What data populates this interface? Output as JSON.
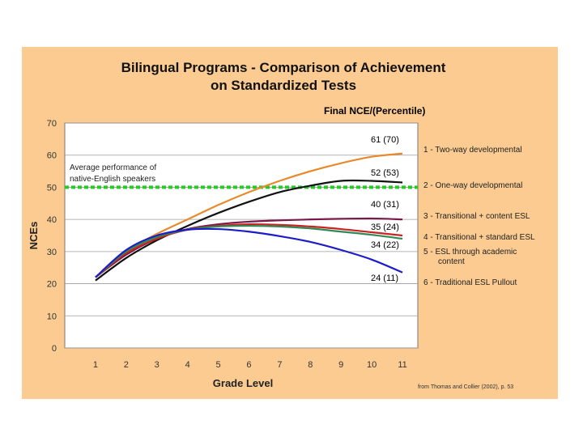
{
  "chart_data": {
    "type": "line",
    "title": "Bilingual Programs - Comparison of Achievement",
    "title_line2": "on Standardized Tests",
    "subtitle": "Final NCE/(Percentile)",
    "xlabel": "Grade  Level",
    "ylabel": "NCEs",
    "x": [
      1,
      2,
      3,
      4,
      5,
      6,
      7,
      8,
      9,
      10,
      11
    ],
    "xlim": [
      0,
      11.5
    ],
    "ylim": [
      0,
      70
    ],
    "yticks": [
      "0",
      "10",
      "20",
      "30",
      "40",
      "50",
      "60",
      "70"
    ],
    "reference_line": {
      "value": 50,
      "color": "#22cc22",
      "label": "Average performance of native-English speakers"
    },
    "series": [
      {
        "name": "1 - Two-way developmental",
        "color": "#e88a2c",
        "end_label": "61 (70)",
        "values": [
          22,
          30,
          35.5,
          40,
          44.5,
          48.5,
          52,
          55,
          57.5,
          59.5,
          60.5
        ]
      },
      {
        "name": "2 - One-way developmental",
        "color": "#111111",
        "end_label": "52 (53)",
        "values": [
          21,
          28,
          33.5,
          38,
          42,
          45.5,
          48.5,
          50.5,
          52,
          52,
          51.5
        ]
      },
      {
        "name": "3 - Transitional + content ESL",
        "color": "#7a1a4a",
        "end_label": "40 (31)",
        "values": [
          22,
          29,
          34,
          37,
          38.5,
          39.3,
          39.7,
          40,
          40.2,
          40.3,
          40
        ]
      },
      {
        "name": "4 - Transitional + standard ESL",
        "color": "#cc2222",
        "end_label": "35 (24)",
        "values": [
          22,
          29.5,
          34,
          36.8,
          38,
          38.5,
          38.3,
          37.8,
          37,
          36,
          35
        ]
      },
      {
        "name": "5 - ESL through academic content",
        "color": "#2e8b57",
        "end_label": "34 (22)",
        "values": [
          22,
          30,
          34.5,
          36.8,
          37.8,
          38,
          37.8,
          37.2,
          36.2,
          35.2,
          34
        ]
      },
      {
        "name": "6 - Traditional ESL Pullout",
        "color": "#1c1cc8",
        "end_label": "24 (11)",
        "values": [
          22,
          30.5,
          35,
          36.8,
          37,
          36.2,
          34.8,
          33,
          30.5,
          27.5,
          23.5
        ]
      }
    ],
    "legend_position": "right",
    "grid": true
  },
  "source_note": "from Thomas and Collier (2002), p. 53",
  "colors": {
    "panel": "#fbcb91",
    "plot": "#ffffff",
    "grid": "#9c9c9c"
  }
}
